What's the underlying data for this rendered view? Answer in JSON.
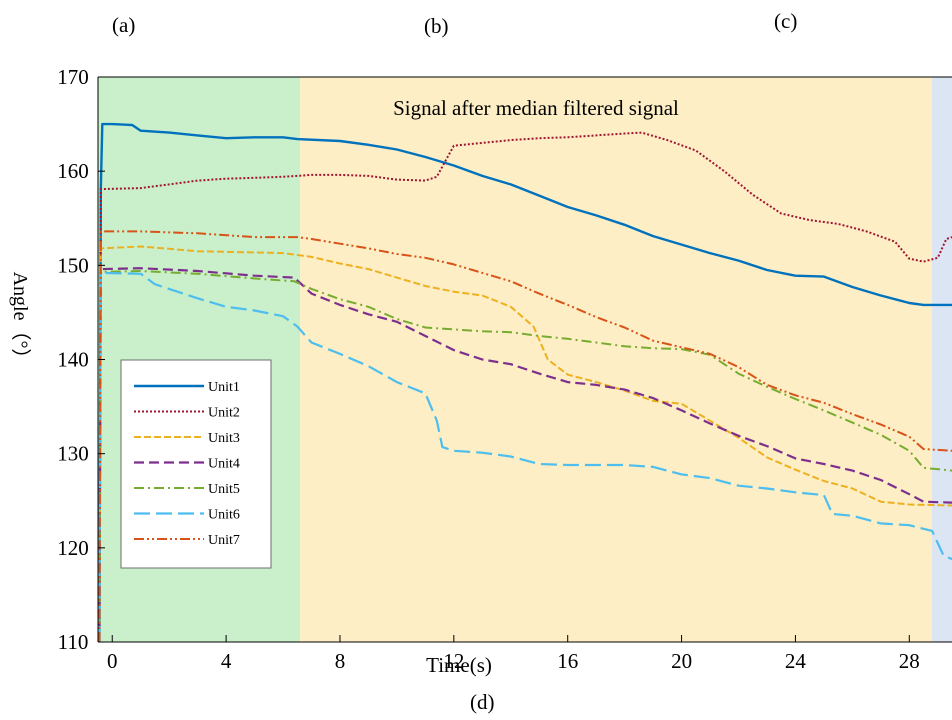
{
  "panel_labels": {
    "a": "(a)",
    "b": "(b)",
    "c": "(c)",
    "d": "(d)"
  },
  "chart_data": {
    "type": "line",
    "title": "Signal after median filtered signal",
    "xlabel": "Time(s)",
    "ylabel": "Angle（°）",
    "xlim": [
      -0.5,
      29.5
    ],
    "ylim": [
      110,
      170
    ],
    "x_ticks": [
      0,
      4,
      8,
      12,
      16,
      20,
      24,
      28
    ],
    "y_ticks": [
      110,
      120,
      130,
      140,
      150,
      160,
      170
    ],
    "grid": false,
    "legend_position": "bottom-left",
    "regions": [
      {
        "x_start": -0.5,
        "x_end": 6.6,
        "color": "#c9f0ca"
      },
      {
        "x_start": 6.6,
        "x_end": 28.8,
        "color": "#fdeec5"
      },
      {
        "x_start": 28.8,
        "x_end": 29.5,
        "color": "#dbe5f3"
      }
    ],
    "series": [
      {
        "name": "Unit1",
        "color": "#0072bd",
        "dash": "solid",
        "width": 2.4,
        "points": [
          [
            -0.45,
            110
          ],
          [
            -0.4,
            158
          ],
          [
            -0.35,
            165
          ],
          [
            0,
            165
          ],
          [
            0.7,
            164.9
          ],
          [
            1,
            164.3
          ],
          [
            2,
            164.1
          ],
          [
            3,
            163.8
          ],
          [
            4,
            163.5
          ],
          [
            5,
            163.6
          ],
          [
            6,
            163.6
          ],
          [
            6.5,
            163.4
          ],
          [
            8,
            163.2
          ],
          [
            9,
            162.8
          ],
          [
            10,
            162.3
          ],
          [
            11,
            161.5
          ],
          [
            12,
            160.6
          ],
          [
            13,
            159.5
          ],
          [
            14,
            158.6
          ],
          [
            15,
            157.4
          ],
          [
            16,
            156.2
          ],
          [
            17,
            155.3
          ],
          [
            18,
            154.3
          ],
          [
            19,
            153.1
          ],
          [
            20,
            152.2
          ],
          [
            21,
            151.3
          ],
          [
            22,
            150.5
          ],
          [
            23,
            149.5
          ],
          [
            24,
            148.9
          ],
          [
            25,
            148.8
          ],
          [
            26,
            147.7
          ],
          [
            27,
            146.8
          ],
          [
            28,
            146
          ],
          [
            28.5,
            145.8
          ],
          [
            29.5,
            145.8
          ]
        ]
      },
      {
        "name": "Unit2",
        "color": "#a2142f",
        "dash": "dotted",
        "width": 2.0,
        "points": [
          [
            -0.45,
            110
          ],
          [
            -0.4,
            158.1
          ],
          [
            1,
            158.2
          ],
          [
            2,
            158.6
          ],
          [
            3,
            159
          ],
          [
            4,
            159.2
          ],
          [
            5,
            159.3
          ],
          [
            6,
            159.4
          ],
          [
            7,
            159.6
          ],
          [
            8,
            159.6
          ],
          [
            9,
            159.5
          ],
          [
            10,
            159.1
          ],
          [
            11,
            159
          ],
          [
            11.4,
            159.4
          ],
          [
            12,
            162.7
          ],
          [
            13,
            163
          ],
          [
            14,
            163.3
          ],
          [
            15,
            163.5
          ],
          [
            16,
            163.6
          ],
          [
            17,
            163.8
          ],
          [
            18,
            164
          ],
          [
            18.6,
            164.1
          ],
          [
            19.5,
            163.3
          ],
          [
            20.5,
            162.2
          ],
          [
            21.5,
            160
          ],
          [
            22.5,
            157.5
          ],
          [
            23.5,
            155.5
          ],
          [
            24.5,
            154.8
          ],
          [
            25.5,
            154.4
          ],
          [
            26.5,
            153.6
          ],
          [
            27.5,
            152.5
          ],
          [
            28,
            150.7
          ],
          [
            28.5,
            150.4
          ],
          [
            29,
            150.8
          ],
          [
            29.3,
            152.8
          ],
          [
            29.5,
            153
          ]
        ]
      },
      {
        "name": "Unit3",
        "color": "#edb120",
        "dash": "dashed",
        "width": 2.0,
        "points": [
          [
            -0.45,
            110
          ],
          [
            -0.4,
            151.8
          ],
          [
            1,
            152
          ],
          [
            3,
            151.5
          ],
          [
            6,
            151.3
          ],
          [
            7,
            150.9
          ],
          [
            8,
            150.2
          ],
          [
            9,
            149.6
          ],
          [
            10,
            148.7
          ],
          [
            11,
            147.8
          ],
          [
            12,
            147.2
          ],
          [
            13,
            146.8
          ],
          [
            14,
            145.6
          ],
          [
            14.8,
            143.5
          ],
          [
            15.3,
            140
          ],
          [
            16,
            138.4
          ],
          [
            17,
            137.6
          ],
          [
            18,
            136.7
          ],
          [
            19,
            135.6
          ],
          [
            20,
            135.3
          ],
          [
            21,
            133.5
          ],
          [
            22,
            131.7
          ],
          [
            23,
            129.6
          ],
          [
            24,
            128.3
          ],
          [
            25,
            127.1
          ],
          [
            26,
            126.3
          ],
          [
            27,
            124.9
          ],
          [
            28,
            124.6
          ],
          [
            29.5,
            124.5
          ]
        ]
      },
      {
        "name": "Unit4",
        "color": "#7e2f8e",
        "dash": "longdash",
        "width": 2.2,
        "points": [
          [
            -0.45,
            110
          ],
          [
            -0.4,
            149.6
          ],
          [
            1,
            149.7
          ],
          [
            3,
            149.4
          ],
          [
            5,
            148.9
          ],
          [
            6.4,
            148.7
          ],
          [
            7,
            147
          ],
          [
            8,
            145.8
          ],
          [
            9,
            144.8
          ],
          [
            10,
            144
          ],
          [
            11,
            142.5
          ],
          [
            12,
            141
          ],
          [
            13,
            140
          ],
          [
            14,
            139.5
          ],
          [
            15,
            138.5
          ],
          [
            16,
            137.6
          ],
          [
            17,
            137.3
          ],
          [
            18,
            136.8
          ],
          [
            19,
            135.9
          ],
          [
            20,
            134.6
          ],
          [
            21,
            133.2
          ],
          [
            22,
            131.9
          ],
          [
            23,
            130.8
          ],
          [
            24,
            129.5
          ],
          [
            25,
            128.9
          ],
          [
            26,
            128.2
          ],
          [
            27,
            127.2
          ],
          [
            28,
            125.7
          ],
          [
            28.5,
            124.9
          ],
          [
            29.5,
            124.8
          ]
        ]
      },
      {
        "name": "Unit5",
        "color": "#77ac30",
        "dash": "dashdot",
        "width": 2.0,
        "points": [
          [
            -0.45,
            110
          ],
          [
            -0.4,
            149.3
          ],
          [
            1,
            149.4
          ],
          [
            3,
            149.1
          ],
          [
            5,
            148.6
          ],
          [
            6.4,
            148.3
          ],
          [
            7,
            147.5
          ],
          [
            8,
            146.4
          ],
          [
            9,
            145.6
          ],
          [
            10,
            144.3
          ],
          [
            11,
            143.4
          ],
          [
            12,
            143.2
          ],
          [
            13,
            143
          ],
          [
            14,
            142.9
          ],
          [
            15,
            142.5
          ],
          [
            16,
            142.2
          ],
          [
            17,
            141.8
          ],
          [
            18,
            141.4
          ],
          [
            19,
            141.2
          ],
          [
            20,
            141.1
          ],
          [
            21,
            140.5
          ],
          [
            22,
            138.5
          ],
          [
            23,
            137.1
          ],
          [
            24,
            135.8
          ],
          [
            25,
            134.6
          ],
          [
            26,
            133.3
          ],
          [
            27,
            132
          ],
          [
            28,
            130.3
          ],
          [
            28.5,
            128.5
          ],
          [
            29.5,
            128.2
          ]
        ]
      },
      {
        "name": "Unit6",
        "color": "#4dbeee",
        "dash": "longdash2",
        "width": 2.2,
        "points": [
          [
            -0.45,
            110
          ],
          [
            -0.4,
            149.2
          ],
          [
            1,
            149.1
          ],
          [
            1.5,
            148
          ],
          [
            3,
            146.5
          ],
          [
            4,
            145.6
          ],
          [
            5,
            145.2
          ],
          [
            6,
            144.6
          ],
          [
            6.5,
            143.5
          ],
          [
            7,
            141.8
          ],
          [
            8,
            140.6
          ],
          [
            9,
            139.3
          ],
          [
            10,
            137.6
          ],
          [
            11,
            136.4
          ],
          [
            11.4,
            133.5
          ],
          [
            11.6,
            130.7
          ],
          [
            12,
            130.3
          ],
          [
            13,
            130.1
          ],
          [
            14,
            129.7
          ],
          [
            15,
            128.9
          ],
          [
            16,
            128.8
          ],
          [
            17,
            128.8
          ],
          [
            18,
            128.8
          ],
          [
            19,
            128.6
          ],
          [
            20,
            127.8
          ],
          [
            21,
            127.4
          ],
          [
            22,
            126.6
          ],
          [
            23,
            126.3
          ],
          [
            24,
            125.9
          ],
          [
            25,
            125.6
          ],
          [
            25.3,
            123.6
          ],
          [
            26,
            123.4
          ],
          [
            27,
            122.6
          ],
          [
            28,
            122.4
          ],
          [
            28.8,
            121.8
          ],
          [
            29.2,
            119.2
          ],
          [
            29.5,
            118.8
          ]
        ]
      },
      {
        "name": "Unit7",
        "color": "#d95319",
        "dash": "dashdotdot",
        "width": 2.0,
        "points": [
          [
            -0.45,
            110
          ],
          [
            -0.4,
            153.6
          ],
          [
            1,
            153.6
          ],
          [
            3,
            153.4
          ],
          [
            5,
            153
          ],
          [
            6.5,
            153
          ],
          [
            7,
            152.8
          ],
          [
            8,
            152.3
          ],
          [
            9,
            151.8
          ],
          [
            10,
            151.2
          ],
          [
            11,
            150.8
          ],
          [
            12,
            150.1
          ],
          [
            13,
            149.2
          ],
          [
            14,
            148.3
          ],
          [
            15,
            147
          ],
          [
            16,
            145.8
          ],
          [
            17,
            144.5
          ],
          [
            18,
            143.4
          ],
          [
            19,
            142
          ],
          [
            20,
            141.3
          ],
          [
            21,
            140.6
          ],
          [
            22,
            139.2
          ],
          [
            23,
            137.3
          ],
          [
            24,
            136.2
          ],
          [
            25,
            135.4
          ],
          [
            26,
            134.2
          ],
          [
            27,
            133.1
          ],
          [
            28,
            131.8
          ],
          [
            28.5,
            130.5
          ],
          [
            29.5,
            130.3
          ]
        ]
      }
    ]
  }
}
